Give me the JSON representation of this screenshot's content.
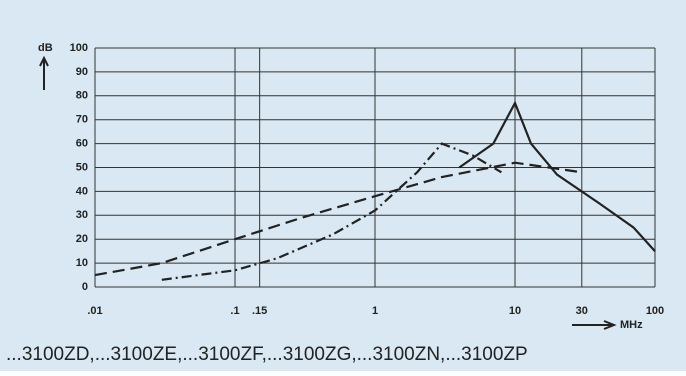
{
  "chart_data": {
    "type": "line",
    "ylabel": "dB",
    "xlabel": "MHz",
    "caption": "...3100ZD,...3100ZE,...3100ZF,...3100ZG,...3100ZN,...3100ZP",
    "xscale": "log",
    "grid": true,
    "background": "#d9e8f2",
    "xlim": [
      0.01,
      100
    ],
    "ylim": [
      0,
      100
    ],
    "xticks": [
      {
        "value": 0.01,
        "label": ".01"
      },
      {
        "value": 0.1,
        "label": ".1"
      },
      {
        "value": 0.15,
        "label": ".15"
      },
      1,
      10,
      30,
      100
    ],
    "yticks": [
      0,
      10,
      20,
      30,
      40,
      50,
      60,
      70,
      80,
      90,
      100
    ],
    "series": [
      {
        "color": "#222222",
        "style": "dashed",
        "x": [
          0.01,
          0.03,
          0.1,
          0.3,
          1,
          3,
          10,
          30
        ],
        "values": [
          5,
          10,
          20,
          29,
          38,
          46,
          52,
          48
        ]
      },
      {
        "color": "#222222",
        "style": "dashdot",
        "x": [
          0.03,
          0.1,
          0.2,
          0.5,
          1,
          2,
          3,
          5,
          8
        ],
        "values": [
          3,
          7,
          12,
          22,
          32,
          48,
          60,
          55,
          48
        ]
      },
      {
        "color": "#222222",
        "style": "solid",
        "x": [
          4,
          7,
          10,
          13,
          20,
          40,
          70,
          100
        ],
        "values": [
          50,
          60,
          77,
          60,
          47,
          35,
          25,
          15
        ]
      }
    ]
  }
}
